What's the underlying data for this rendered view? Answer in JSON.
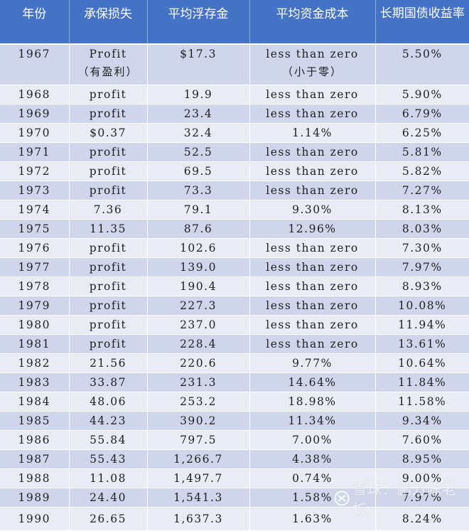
{
  "table": {
    "headers": [
      "年份",
      "承保损失",
      "平均浮存金",
      "平均资金成本",
      "长期国债收益率"
    ],
    "rows": [
      {
        "year": "1967",
        "loss": "Profit",
        "loss_sub": "（有盈利）",
        "float": "$17.3",
        "cost": "less than zero",
        "cost_sub": "（小于零）",
        "yield": "5.50%"
      },
      {
        "year": "1968",
        "loss": "profit",
        "float": "19.9",
        "cost": "less than zero",
        "yield": "5.90%"
      },
      {
        "year": "1969",
        "loss": "profit",
        "float": "23.4",
        "cost": "less than zero",
        "yield": "6.79%"
      },
      {
        "year": "1970",
        "loss": "$0.37",
        "float": "32.4",
        "cost": "1.14%",
        "yield": "6.25%"
      },
      {
        "year": "1971",
        "loss": "profit",
        "float": "52.5",
        "cost": "less than zero",
        "yield": "5.81%"
      },
      {
        "year": "1972",
        "loss": "profit",
        "float": "69.5",
        "cost": "less than zero",
        "yield": "5.82%"
      },
      {
        "year": "1973",
        "loss": "profit",
        "float": "73.3",
        "cost": "less than zero",
        "yield": "7.27%"
      },
      {
        "year": "1974",
        "loss": "7.36",
        "float": "79.1",
        "cost": "9.30%",
        "yield": "8.13%"
      },
      {
        "year": "1975",
        "loss": "11.35",
        "float": "87.6",
        "cost": "12.96%",
        "yield": "8.03%"
      },
      {
        "year": "1976",
        "loss": "profit",
        "float": "102.6",
        "cost": "less than zero",
        "yield": "7.30%"
      },
      {
        "year": "1977",
        "loss": "profit",
        "float": "139.0",
        "cost": "less than zero",
        "yield": "7.97%"
      },
      {
        "year": "1978",
        "loss": "profit",
        "float": "190.4",
        "cost": "less than zero",
        "yield": "8.93%"
      },
      {
        "year": "1979",
        "loss": "profit",
        "float": "227.3",
        "cost": "less than zero",
        "yield": "10.08%"
      },
      {
        "year": "1980",
        "loss": "profit",
        "float": "237.0",
        "cost": "less than zero",
        "yield": "11.94%"
      },
      {
        "year": "1981",
        "loss": "profit",
        "float": "228.4",
        "cost": "less than zero",
        "yield": "13.61%"
      },
      {
        "year": "1982",
        "loss": "21.56",
        "float": "220.6",
        "cost": "9.77%",
        "yield": "10.64%"
      },
      {
        "year": "1983",
        "loss": "33.87",
        "float": "231.3",
        "cost": "14.64%",
        "yield": "11.84%"
      },
      {
        "year": "1984",
        "loss": "48.06",
        "float": "253.2",
        "cost": "18.98%",
        "yield": "11.58%"
      },
      {
        "year": "1985",
        "loss": "44.23",
        "float": "390.2",
        "cost": "11.34%",
        "yield": "9.34%"
      },
      {
        "year": "1986",
        "loss": "55.84",
        "float": "797.5",
        "cost": "7.00%",
        "yield": "7.60%"
      },
      {
        "year": "1987",
        "loss": "55.43",
        "float": "1,266.7",
        "cost": "4.38%",
        "yield": "8.95%"
      },
      {
        "year": "1988",
        "loss": "11.08",
        "float": "1,497.7",
        "cost": "0.74%",
        "yield": "9.00%"
      },
      {
        "year": "1989",
        "loss": "24.40",
        "float": "1,541.3",
        "cost": "1.58%",
        "yield": "7.97%"
      },
      {
        "year": "1990",
        "loss": "26.65",
        "float": "1,637.3",
        "cost": "1.63%",
        "yield": "8.24%"
      }
    ]
  },
  "colors": {
    "header_bg": "#4472c4",
    "header_text": "#ffffff",
    "row_band_dark": "#cfd5ea",
    "row_band_light": "#e9ebf5"
  },
  "watermark": {
    "text": "雪球：鹏万陈老板",
    "icon": "xueqiu-logo-icon"
  }
}
